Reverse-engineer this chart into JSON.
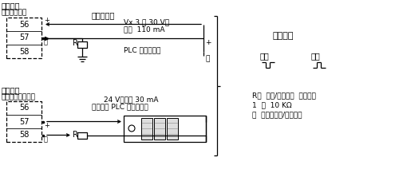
{
  "bg_color": "#ffffff",
  "text_color": "#000000",
  "top_label": "无源输出",
  "top_sublabel": "（外部供电）",
  "bottom_label": "有源输出",
  "bottom_sublabel": "（由变送器供电）",
  "top_title": "数字量输出",
  "top_spec1": "Vx 3 至 30 V，",
  "top_spec2": "最大  110 mA",
  "top_plc": "PLC 数字量输入",
  "bottom_spec1": "24 V，最大 30 mA",
  "bottom_spec2": "计数器或 PLC 数字量输入",
  "menu_title": "菜单设置",
  "neg_label": "负：",
  "pos_label": "正：",
  "r_note1": "R＝  上拉/下拉电阻  可能需要",
  "r_note2": "1  到  10 KΩ",
  "r_note3": "－  取决于电缆/输入电阻"
}
